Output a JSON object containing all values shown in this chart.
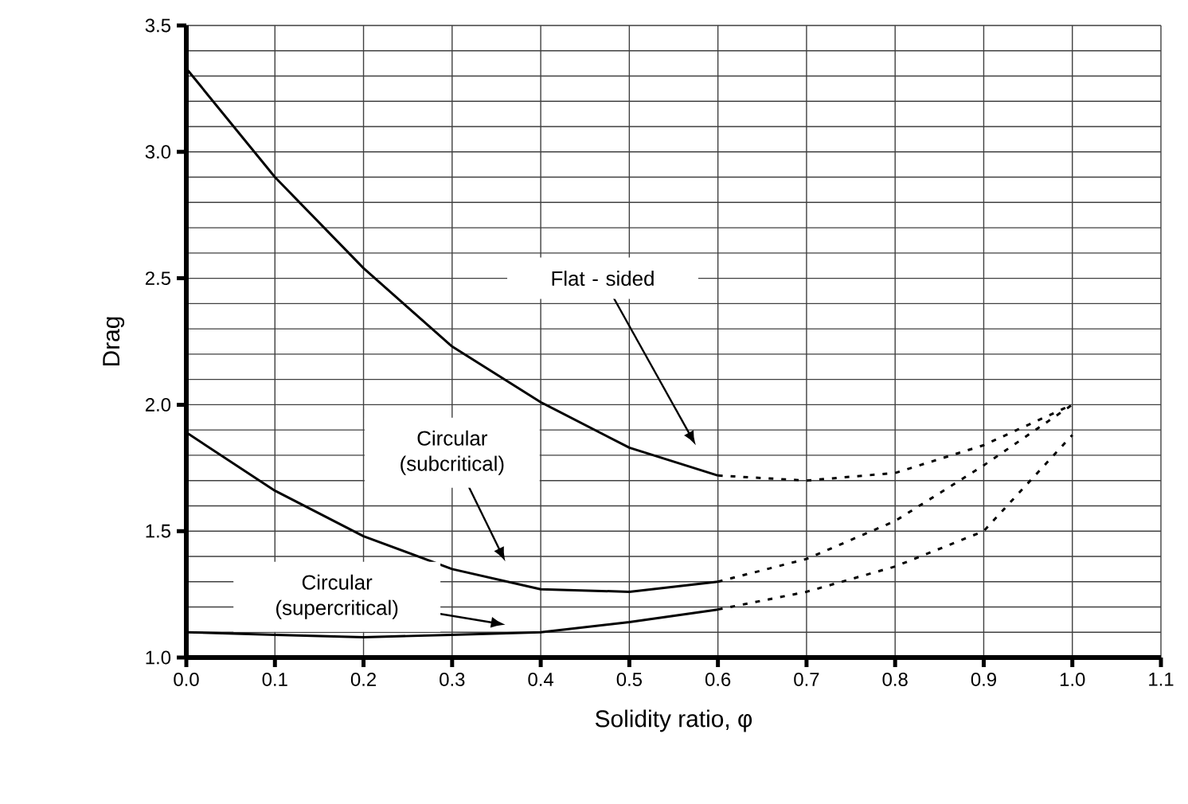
{
  "chart_data": {
    "type": "line",
    "xlabel": "Solidity ratio, φ",
    "ylabel": "Drag",
    "xlim": [
      0,
      1.1
    ],
    "ylim": [
      1,
      3.5
    ],
    "xticks": [
      {
        "value": 0,
        "label": "0.0"
      },
      {
        "value": 0.1,
        "label": "0.1"
      },
      {
        "value": 0.2,
        "label": "0.2"
      },
      {
        "value": 0.3,
        "label": "0.3"
      },
      {
        "value": 0.4,
        "label": "0.4"
      },
      {
        "value": 0.5,
        "label": "0.5"
      },
      {
        "value": 0.6,
        "label": "0.6"
      },
      {
        "value": 0.7,
        "label": "0.7"
      },
      {
        "value": 0.8,
        "label": "0.8"
      },
      {
        "value": 0.9,
        "label": "0.9"
      },
      {
        "value": 1.0,
        "label": "1.0"
      },
      {
        "value": 1.1,
        "label": "1.1"
      }
    ],
    "yticks": [
      {
        "value": 1,
        "label": "1.0"
      },
      {
        "value": 1.5,
        "label": "1.5"
      },
      {
        "value": 2,
        "label": "2.0"
      },
      {
        "value": 2.5,
        "label": "2.5"
      },
      {
        "value": 3,
        "label": "3.0"
      },
      {
        "value": 3.5,
        "label": "3.5"
      }
    ],
    "grid": true,
    "series": [
      {
        "color": "#000000",
        "line_style": "solid",
        "x": [
          0,
          0.1,
          0.2,
          0.3,
          0.4,
          0.5,
          0.6
        ],
        "values": [
          3.33,
          2.9,
          2.54,
          2.23,
          2.01,
          1.83,
          1.72
        ]
      },
      {
        "color": "#000000",
        "line_style": "dotted",
        "x": [
          0.6,
          0.7,
          0.8,
          0.9,
          1.0
        ],
        "values": [
          1.72,
          1.7,
          1.73,
          1.84,
          2.0
        ]
      },
      {
        "color": "#000000",
        "line_style": "solid",
        "x": [
          0,
          0.1,
          0.2,
          0.3,
          0.4,
          0.5,
          0.6
        ],
        "values": [
          1.89,
          1.66,
          1.48,
          1.35,
          1.27,
          1.26,
          1.3
        ]
      },
      {
        "color": "#000000",
        "line_style": "dotted",
        "x": [
          0.6,
          0.7,
          0.8,
          0.9,
          1.0
        ],
        "values": [
          1.3,
          1.39,
          1.54,
          1.76,
          2.0
        ]
      },
      {
        "color": "#000000",
        "line_style": "solid",
        "x": [
          0,
          0.1,
          0.2,
          0.3,
          0.4,
          0.5,
          0.6
        ],
        "values": [
          1.1,
          1.09,
          1.08,
          1.09,
          1.1,
          1.14,
          1.19
        ]
      },
      {
        "color": "#000000",
        "line_style": "dotted",
        "x": [
          0.6,
          0.7,
          0.8,
          0.9,
          1.0
        ],
        "values": [
          1.19,
          1.26,
          1.36,
          1.5,
          1.88
        ]
      }
    ],
    "annotations": [
      "Flat - sided",
      "Circular (subcritical)",
      "Circular (supercritical)"
    ]
  }
}
